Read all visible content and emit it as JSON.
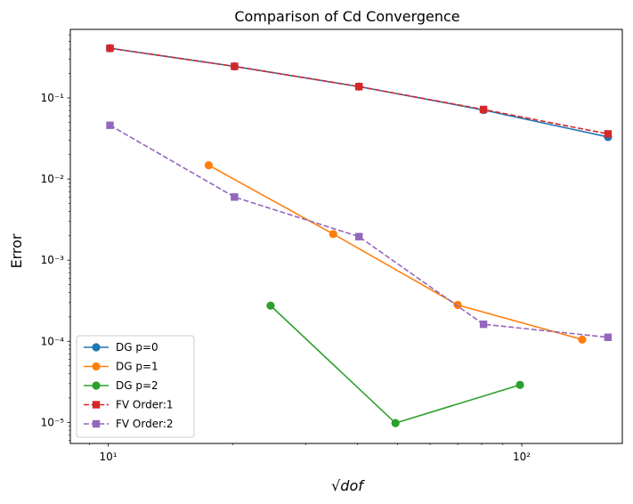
{
  "chart_data": {
    "type": "line",
    "title": "Comparison of Cd Convergence",
    "xlabel": "√dof",
    "ylabel": "Error",
    "xscale": "log",
    "yscale": "log",
    "xlim": [
      8.1,
      175
    ],
    "ylim": [
      5.5e-06,
      0.7
    ],
    "grid": false,
    "legend": "lower-left",
    "x_ticks": [
      {
        "value": 10,
        "label": "10¹"
      },
      {
        "value": 100,
        "label": "10²"
      }
    ],
    "y_ticks": [
      {
        "value": 1e-05,
        "label": "10⁻⁵"
      },
      {
        "value": 0.0001,
        "label": "10⁻⁴"
      },
      {
        "value": 0.001,
        "label": "10⁻³"
      },
      {
        "value": 0.01,
        "label": "10⁻²"
      },
      {
        "value": 0.1,
        "label": "10⁻¹"
      }
    ],
    "series": [
      {
        "name": "DG p=0",
        "color": "#1f77b4",
        "marker": "circle",
        "linestyle": "solid",
        "x": [
          10.1,
          20.2,
          40.4,
          80.8,
          161.6
        ],
        "y": [
          0.41,
          0.245,
          0.138,
          0.071,
          0.033
        ]
      },
      {
        "name": "DG p=1",
        "color": "#ff7f0e",
        "marker": "circle",
        "linestyle": "solid",
        "x": [
          17.5,
          35,
          70,
          140
        ],
        "y": [
          0.0148,
          0.0021,
          0.00028,
          0.000105
        ]
      },
      {
        "name": "DG p=2",
        "color": "#2ca02c",
        "marker": "circle",
        "linestyle": "solid",
        "x": [
          24.7,
          49.5,
          99
        ],
        "y": [
          0.000275,
          9.8e-06,
          2.9e-05
        ]
      },
      {
        "name": "FV Order:1",
        "color": "#d62728",
        "marker": "square",
        "linestyle": "dashed",
        "x": [
          10.1,
          20.2,
          40.4,
          80.8,
          161.6
        ],
        "y": [
          0.41,
          0.245,
          0.138,
          0.072,
          0.036
        ]
      },
      {
        "name": "FV Order:2",
        "color": "#9467bd",
        "marker": "square",
        "linestyle": "dashed",
        "x": [
          10.1,
          20.2,
          40.4,
          80.8,
          161.6
        ],
        "y": [
          0.046,
          0.006,
          0.00195,
          0.000162,
          0.000112
        ]
      }
    ]
  }
}
